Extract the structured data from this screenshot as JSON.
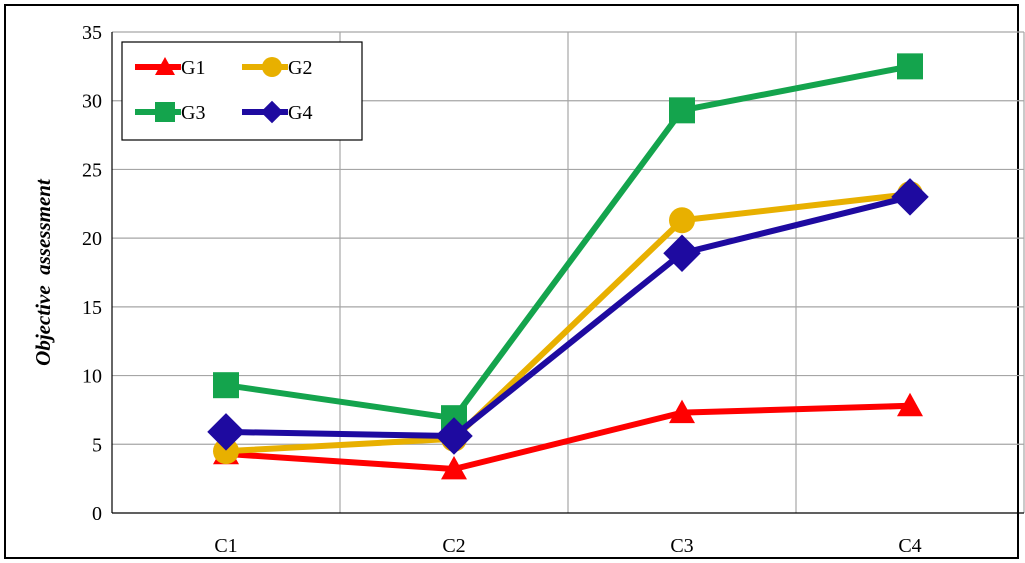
{
  "chart_data": {
    "type": "line",
    "title": "",
    "xlabel": "",
    "ylabel": "Objective  assessment",
    "categories": [
      "C1",
      "C2",
      "C3",
      "C4"
    ],
    "ylim": [
      0,
      35
    ],
    "yticks": [
      0,
      5,
      10,
      15,
      20,
      25,
      30,
      35
    ],
    "grid": true,
    "legend_position": "top-left",
    "series": [
      {
        "name": "G1",
        "values": [
          4.3,
          3.2,
          7.3,
          7.8
        ],
        "color": "#ff0000",
        "marker": "triangle"
      },
      {
        "name": "G2",
        "values": [
          4.5,
          5.4,
          21.3,
          23.2
        ],
        "color": "#e8b000",
        "marker": "circle"
      },
      {
        "name": "G3",
        "values": [
          9.3,
          6.9,
          29.3,
          32.5
        ],
        "color": "#14a44d",
        "marker": "square"
      },
      {
        "name": "G4",
        "values": [
          5.9,
          5.6,
          18.9,
          23.0
        ],
        "color": "#1e0aa0",
        "marker": "diamond"
      }
    ]
  }
}
